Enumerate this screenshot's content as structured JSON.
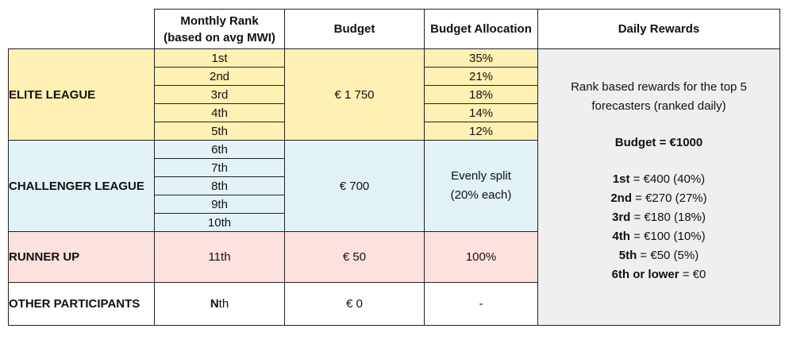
{
  "headers": {
    "monthly_rank_line1": "Monthly Rank",
    "monthly_rank_line2": "(based on avg MWI)",
    "budget": "Budget",
    "allocation": "Budget Allocation",
    "daily_rewards": "Daily Rewards"
  },
  "elite": {
    "label": "ELITE LEAGUE",
    "budget": "€ 1 750",
    "ranks": [
      "1st",
      "2nd",
      "3rd",
      "4th",
      "5th"
    ],
    "allocations": [
      "35%",
      "21%",
      "18%",
      "14%",
      "12%"
    ]
  },
  "challenger": {
    "label": "CHALLENGER LEAGUE",
    "budget": "€ 700",
    "ranks": [
      "6th",
      "7th",
      "8th",
      "9th",
      "10th"
    ],
    "allocation_line1": "Evenly split",
    "allocation_line2": "(20% each)"
  },
  "runner": {
    "label": "RUNNER UP",
    "rank": "11th",
    "budget": "€ 50",
    "allocation": "100%"
  },
  "other": {
    "label": "OTHER PARTICIPANTS",
    "rank": "Nth",
    "budget": "€ 0",
    "allocation": "-"
  },
  "daily": {
    "intro_line1": "Rank based rewards for the top 5",
    "intro_line2": "forecasters (ranked daily)",
    "budget": "Budget = €1000",
    "items": [
      {
        "rank": "1st",
        "value": " = €400 (40%)"
      },
      {
        "rank": "2nd",
        "value": " = €270 (27%)"
      },
      {
        "rank": "3rd",
        "value": " = €180 (18%)"
      },
      {
        "rank": "4th",
        "value": " = €100 (10%)"
      },
      {
        "rank": "5th",
        "value": " = €50 (5%)"
      },
      {
        "rank": "6th or lower",
        "value": " = €0"
      }
    ]
  },
  "colors": {
    "elite": "#fff1b3",
    "challenger": "#e1f3f6",
    "runner": "#fde1de",
    "rewards": "#efefef"
  }
}
